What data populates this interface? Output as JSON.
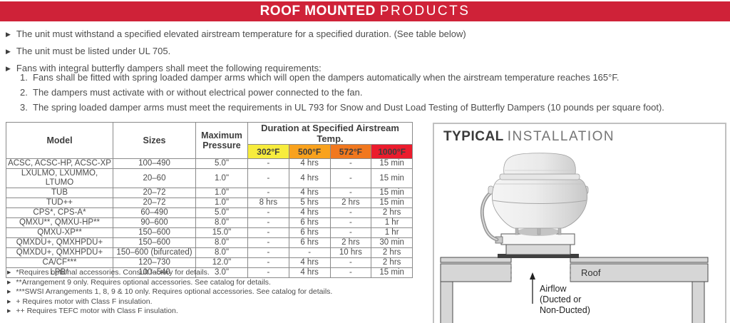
{
  "banner": {
    "title_bold": "ROOF MOUNTED",
    "title_light": "PRODUCTS"
  },
  "requirements": {
    "bullets": [
      "The unit must withstand a specified elevated airstream temperature for a specified duration. (See table below)",
      "The unit must be listed under UL 705.",
      "Fans with integral butterfly dampers shall meet the following requirements:"
    ],
    "numbered": [
      {
        "num": "1.",
        "text": "Fans shall be fitted with spring loaded damper arms which will open the dampers automatically when the airstream temperature reaches 165°F."
      },
      {
        "num": "2.",
        "text": "The dampers must activate with or without electrical power connected to the fan."
      },
      {
        "num": "3.",
        "text": "The spring loaded damper arms must meet the requirements in UL 793 for Snow and Dust Load Testing of Butterfly Dampers (10 pounds per square foot)."
      }
    ]
  },
  "table": {
    "headers": {
      "model": "Model",
      "sizes": "Sizes",
      "max_pressure": "Maximum Pressure",
      "duration_group": "Duration at Specified Airstream Temp.",
      "temps": [
        "302°F",
        "500°F",
        "572°F",
        "1000°F"
      ]
    },
    "rows": [
      [
        "ACSC, ACSC-HP, ACSC-XP",
        "100–490",
        "5.0\"",
        "-",
        "4 hrs",
        "-",
        "15 min"
      ],
      [
        "LXULMO, LXUMMO, LTUMO",
        "20–60",
        "1.0\"",
        "-",
        "4 hrs",
        "-",
        "15 min"
      ],
      [
        "TUB",
        "20–72",
        "1.0\"",
        "-",
        "4 hrs",
        "-",
        "15 min"
      ],
      [
        "TUD++",
        "20–72",
        "1.0\"",
        "8 hrs",
        "5 hrs",
        "2 hrs",
        "15 min"
      ],
      [
        "CPS*, CPS-A*",
        "60–490",
        "5.0\"",
        "-",
        "4 hrs",
        "-",
        "2 hrs"
      ],
      [
        "QMXU**, QMXU-HP**",
        "90–600",
        "8.0\"",
        "-",
        "6 hrs",
        "-",
        "1 hr"
      ],
      [
        "QMXU-XP**",
        "150–600",
        "15.0\"",
        "-",
        "6 hrs",
        "-",
        "1 hr"
      ],
      [
        "QMXDU+, QMXHPDU+",
        "150–600",
        "8.0\"",
        "-",
        "6 hrs",
        "2 hrs",
        "30 min"
      ],
      [
        "QMXDU+, QMXHPDU+",
        "150–600 (bifurcated)",
        "8.0\"",
        "-",
        "-",
        "10 hrs",
        "2 hrs"
      ],
      [
        "CA/CF***",
        "120–730",
        "12.0\"",
        "-",
        "4 hrs",
        "-",
        "2 hrs"
      ],
      [
        "LPB*",
        "100–540",
        "3.0\"",
        "-",
        "4 hrs",
        "-",
        "15 min"
      ]
    ]
  },
  "footnotes": [
    "*Requires optional accessories. Consult factory for details.",
    "**Arrangement 9 only. Requires optional accessories. See catalog for details.",
    "***SWSI Arrangements 1, 8, 9 & 10 only. Requires optional accessories. See catalog for details.",
    "+ Requires motor with Class F insulation.",
    "++ Requires TEFC motor with Class F insulation."
  ],
  "installation": {
    "title_bold": "TYPICAL",
    "title_light": "INSTALLATION",
    "roof_label": "Roof",
    "airflow_label": "Airflow\n(Ducted or\nNon-Ducted)"
  },
  "colors": {
    "banner_red": "#CF2238",
    "temp_302": "#F7EC3D",
    "temp_500": "#F9A21D",
    "temp_572": "#F1781F",
    "temp_1000": "#EB1C2D",
    "temp_1000_text": "#9C1B28"
  }
}
